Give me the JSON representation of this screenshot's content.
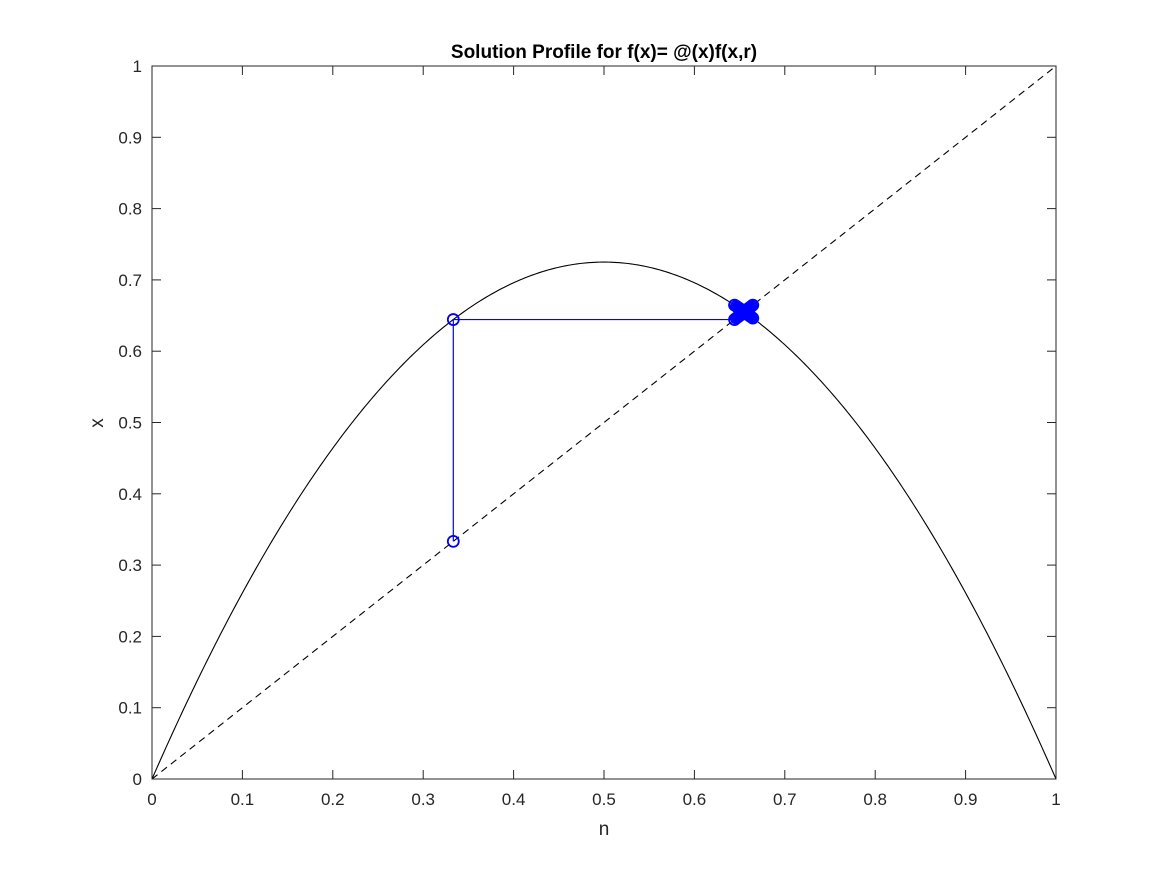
{
  "chart_data": {
    "type": "line",
    "title": "Solution Profile for f(x)= @(x)f(x,r)",
    "xlabel": "n",
    "ylabel": "x",
    "xlim": [
      0,
      1
    ],
    "ylim": [
      0,
      1
    ],
    "grid": false,
    "xticks": [
      "0",
      "0.1",
      "0.2",
      "0.3",
      "0.4",
      "0.5",
      "0.6",
      "0.7",
      "0.8",
      "0.9",
      "1"
    ],
    "yticks": [
      "0",
      "0.1",
      "0.2",
      "0.3",
      "0.4",
      "0.5",
      "0.6",
      "0.7",
      "0.8",
      "0.9",
      "1"
    ],
    "series": [
      {
        "kind": "curve",
        "style": "solid",
        "color": "#000000",
        "function": "2.9*x*(1-x)",
        "r": 2.9,
        "domain": [
          0,
          1
        ]
      },
      {
        "kind": "identity-line",
        "style": "dashed",
        "color": "#000000",
        "x": [
          0,
          1
        ],
        "y": [
          0,
          1
        ]
      },
      {
        "kind": "cobweb",
        "style": "solid",
        "marker": "circle",
        "color": "#0000ff",
        "x": [
          0.3333,
          0.3333,
          0.6444,
          0.6444,
          0.6646,
          0.6646,
          0.6464,
          0.6464,
          0.663,
          0.663,
          0.648,
          0.648,
          0.6615,
          0.6615,
          0.6493,
          0.6493,
          0.6603,
          0.6603,
          0.6504,
          0.6504,
          0.6594,
          0.6594,
          0.6512,
          0.6512,
          0.6586,
          0.6586,
          0.6519,
          0.6519,
          0.658,
          0.658,
          0.6525,
          0.6525,
          0.6575,
          0.6575
        ],
        "y": [
          0.3333,
          0.6444,
          0.6444,
          0.6646,
          0.6646,
          0.6464,
          0.6464,
          0.663,
          0.663,
          0.648,
          0.648,
          0.6615,
          0.6615,
          0.6493,
          0.6493,
          0.6603,
          0.6603,
          0.6504,
          0.6504,
          0.6594,
          0.6594,
          0.6512,
          0.6512,
          0.6586,
          0.6586,
          0.6519,
          0.6519,
          0.658,
          0.658,
          0.6525,
          0.6525,
          0.6575,
          0.6575,
          0.6529
        ]
      }
    ]
  }
}
